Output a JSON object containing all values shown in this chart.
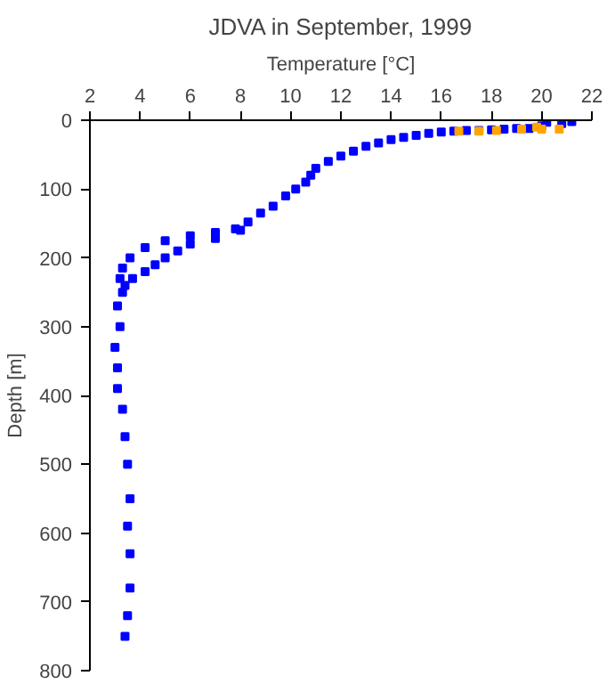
{
  "chart_data": {
    "type": "scatter",
    "title": "JDVA in September, 1999",
    "xlabel": "Temperature [°C]",
    "ylabel": "Depth [m]",
    "xlim": [
      2,
      22
    ],
    "ylim": [
      800,
      0
    ],
    "xticks": [
      2,
      4,
      6,
      8,
      10,
      12,
      14,
      16,
      18,
      20,
      22
    ],
    "yticks": [
      0,
      100,
      200,
      300,
      400,
      500,
      600,
      700,
      800
    ],
    "grid": false,
    "marker": "square",
    "series": [
      {
        "color": "#0000ff",
        "x": [
          21.2,
          20.8,
          20.2,
          20,
          19.5,
          19,
          18.5,
          18,
          17.5,
          17,
          16.5,
          16,
          15.5,
          15,
          14.5,
          14,
          13.5,
          13,
          12.5,
          12,
          11.5,
          11,
          10.8,
          10.6,
          10.2,
          9.8,
          9.3,
          8.8,
          8.3,
          7.8,
          7,
          6,
          5,
          4.2,
          3.6,
          3.3,
          3.2,
          3.3,
          3.1,
          3.2,
          3,
          3.1,
          3.1,
          3.3,
          3.4,
          3.5,
          3.6,
          3.5,
          3.6,
          3.6,
          3.5,
          3.4,
          8,
          7,
          6,
          5.5,
          5,
          4.6,
          4.2,
          3.7,
          3.4
        ],
        "values": [
          2,
          5,
          3,
          8,
          12,
          12,
          13,
          14,
          15,
          15,
          16,
          17,
          19,
          22,
          25,
          28,
          33,
          38,
          45,
          52,
          60,
          70,
          80,
          90,
          100,
          110,
          125,
          135,
          148,
          158,
          163,
          168,
          175,
          185,
          200,
          215,
          230,
          250,
          270,
          300,
          330,
          360,
          390,
          420,
          460,
          500,
          550,
          590,
          630,
          680,
          720,
          750,
          160,
          172,
          180,
          190,
          200,
          210,
          220,
          230,
          240
        ]
      },
      {
        "color": "#ffa500",
        "x": [
          16.7,
          17.5,
          18.2,
          19.2,
          20,
          20.7,
          19.8
        ],
        "values": [
          16,
          16,
          15,
          13,
          13,
          13,
          10
        ]
      }
    ]
  }
}
